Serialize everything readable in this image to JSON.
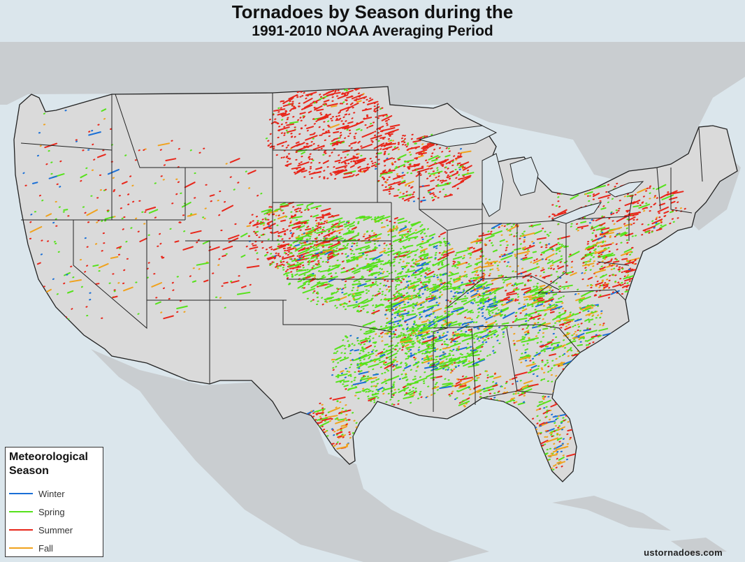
{
  "title": "Tornadoes by Season during the",
  "subtitle": "1991-2010 NOAA Averaging Period",
  "legend": {
    "title": "Meteorological Season",
    "items": [
      {
        "label": "Winter",
        "color": "#1a6fd6"
      },
      {
        "label": "Spring",
        "color": "#56e21b"
      },
      {
        "label": "Summer",
        "color": "#e8261a"
      },
      {
        "label": "Fall",
        "color": "#f0a21c"
      }
    ]
  },
  "credit": "ustornadoes.com",
  "colors": {
    "ocean": "#dbe6ec",
    "land_context": "#c8cdd0",
    "us_land": "#dadada",
    "borders": "#222222"
  }
}
